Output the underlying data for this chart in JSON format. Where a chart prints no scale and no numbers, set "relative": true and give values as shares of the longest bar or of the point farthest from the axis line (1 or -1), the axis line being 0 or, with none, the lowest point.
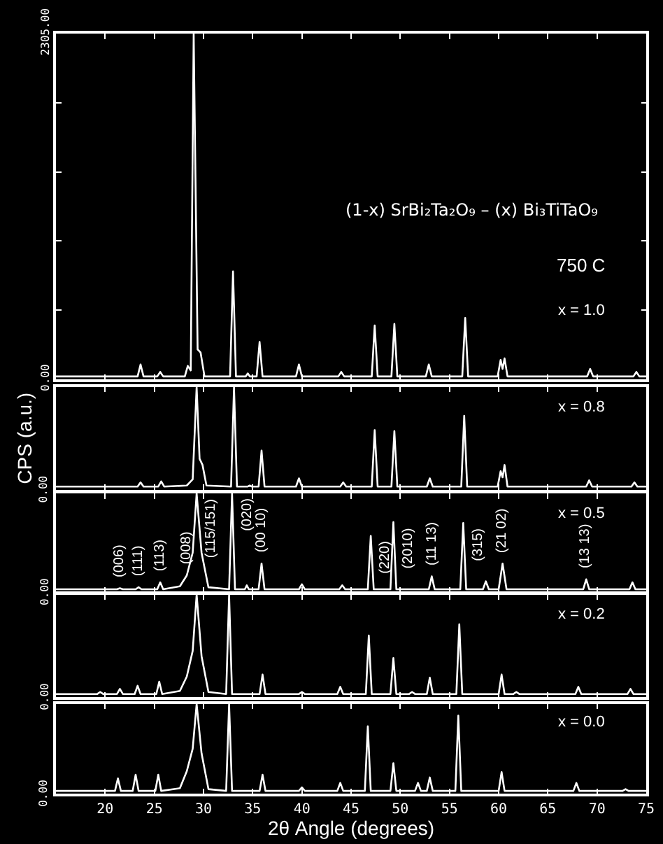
{
  "chart_data": [
    {
      "type": "line",
      "title": "(1-x) SrBi₂Ta₂O₉ – (x) Bi₃TiTaO₉",
      "annotations": [
        "750 C",
        "x = 1.0"
      ],
      "tick_labels": "y",
      "xlim": [
        15,
        75
      ],
      "xticks": [
        20,
        25,
        30,
        35,
        40,
        45,
        50,
        55,
        60,
        65,
        70,
        75
      ],
      "ylim": [
        0,
        2305
      ],
      "yticks": [
        {
          "value": 0,
          "label": "0.00"
        },
        {
          "value": 461,
          "label": null
        },
        {
          "value": 922,
          "label": null
        },
        {
          "value": 1383,
          "label": null
        },
        {
          "value": 1844,
          "label": null
        },
        {
          "value": 2305,
          "label": "2305.00"
        }
      ],
      "series": [
        {
          "color": "#ffffff",
          "x": [
            15,
            23.3,
            23.6,
            23.9,
            25.3,
            25.6,
            25.9,
            28.1,
            28.4,
            28.7,
            29.0,
            29.4,
            29.7,
            30.1,
            32.7,
            33.0,
            33.3,
            34.3,
            34.5,
            34.7,
            35.4,
            35.7,
            36.0,
            39.4,
            39.7,
            40.0,
            43.7,
            44.0,
            44.3,
            47.1,
            47.4,
            47.7,
            49.1,
            49.4,
            49.7,
            52.6,
            52.9,
            53.2,
            56.3,
            56.6,
            56.9,
            59.9,
            60.2,
            60.4,
            60.6,
            60.9,
            69.0,
            69.3,
            69.6,
            73.7,
            74.0,
            74.3,
            75
          ],
          "values": [
            20,
            20,
            100,
            20,
            20,
            50,
            20,
            20,
            90,
            60,
            2305,
            200,
            180,
            20,
            20,
            720,
            20,
            20,
            40,
            20,
            20,
            250,
            20,
            20,
            100,
            20,
            20,
            50,
            20,
            20,
            360,
            20,
            20,
            370,
            20,
            20,
            100,
            20,
            20,
            410,
            20,
            20,
            130,
            70,
            140,
            20,
            20,
            70,
            20,
            20,
            50,
            20,
            20
          ]
        }
      ]
    },
    {
      "type": "line",
      "relative": true,
      "ylabel": "CPS (a.u.)",
      "annotations": [
        "x = 0.8",
        "0.00"
      ],
      "tick_labels": false,
      "xlim": [
        15,
        75
      ],
      "xticks": [
        20,
        25,
        30,
        35,
        40,
        45,
        50,
        55,
        60,
        65,
        70,
        75
      ],
      "series": [
        {
          "color": "#ffffff",
          "x": [
            15,
            23.3,
            23.6,
            23.9,
            25.4,
            25.7,
            26.0,
            28.3,
            28.6,
            28.9,
            29.3,
            29.6,
            29.9,
            30.3,
            32.8,
            33.1,
            33.4,
            34.5,
            34.7,
            34.9,
            35.6,
            35.9,
            36.2,
            39.4,
            39.7,
            40.0,
            43.9,
            44.2,
            44.5,
            47.1,
            47.4,
            47.7,
            49.1,
            49.4,
            49.7,
            52.7,
            53.0,
            53.3,
            56.2,
            56.5,
            56.8,
            59.9,
            60.2,
            60.4,
            60.6,
            60.9,
            68.9,
            69.2,
            69.5,
            73.5,
            73.8,
            74.1,
            75
          ],
          "values": [
            0.03,
            0.03,
            0.07,
            0.03,
            0.03,
            0.08,
            0.03,
            0.04,
            0.07,
            0.1,
            1.0,
            0.3,
            0.24,
            0.04,
            0.03,
            1.0,
            0.03,
            0.03,
            0.04,
            0.03,
            0.03,
            0.38,
            0.03,
            0.03,
            0.11,
            0.03,
            0.03,
            0.07,
            0.03,
            0.03,
            0.58,
            0.03,
            0.03,
            0.57,
            0.03,
            0.03,
            0.11,
            0.03,
            0.03,
            0.72,
            0.03,
            0.03,
            0.18,
            0.12,
            0.24,
            0.03,
            0.03,
            0.09,
            0.03,
            0.03,
            0.07,
            0.03,
            0.03
          ]
        }
      ]
    },
    {
      "type": "line",
      "relative": true,
      "tick_labels": false,
      "annotations": [
        "x = 0.5",
        "0.00",
        {
          "text": "(006)",
          "x": 21.5,
          "y": 0.04
        },
        {
          "text": "(111)",
          "x": 23.4,
          "y": 0.05
        },
        {
          "text": "(113)",
          "x": 25.6,
          "y": 0.1
        },
        {
          "text": "(008)",
          "x": 28.3,
          "y": 0.17
        },
        {
          "text": "(115/151)",
          "x": 29.3,
          "y": 1.0
        },
        {
          "text": "(020)",
          "x": 32.9,
          "y": 1.0
        },
        {
          "text": "(00 10)",
          "x": 35.9,
          "y": 0.29
        },
        {
          "text": "(220)",
          "x": 47.0,
          "y": 0.57
        },
        {
          "text": "(2010)",
          "x": 49.3,
          "y": 0.71
        },
        {
          "text": "(11 13)",
          "x": 53.2,
          "y": 0.16
        },
        {
          "text": "(315)",
          "x": 56.4,
          "y": 0.7
        },
        {
          "text": "(21 02)",
          "x": 60.4,
          "y": 0.29
        },
        {
          "text": "(13 13)",
          "x": 68.9,
          "y": 0.13
        }
      ],
      "xlim": [
        15,
        75
      ],
      "xticks": [
        20,
        25,
        30,
        35,
        40,
        45,
        50,
        55,
        60,
        65,
        70,
        75
      ],
      "series": [
        {
          "color": "#ffffff",
          "x": [
            15,
            21.2,
            21.5,
            21.8,
            23.1,
            23.4,
            23.7,
            25.3,
            25.6,
            25.9,
            27.6,
            28.3,
            28.9,
            29.3,
            29.8,
            30.5,
            32.6,
            32.9,
            33.2,
            34.2,
            34.4,
            34.6,
            35.6,
            35.9,
            36.2,
            39.7,
            40.0,
            40.3,
            43.8,
            44.1,
            44.4,
            46.7,
            47.0,
            47.3,
            49.0,
            49.3,
            49.6,
            52.9,
            53.2,
            53.5,
            56.1,
            56.4,
            56.7,
            58.4,
            58.7,
            59.0,
            60.0,
            60.4,
            60.8,
            68.6,
            68.9,
            69.2,
            73.3,
            73.6,
            73.9,
            75
          ],
          "values": [
            0.03,
            0.03,
            0.04,
            0.03,
            0.03,
            0.05,
            0.03,
            0.03,
            0.1,
            0.03,
            0.06,
            0.17,
            0.4,
            1.0,
            0.4,
            0.05,
            0.03,
            1.0,
            0.03,
            0.03,
            0.07,
            0.03,
            0.03,
            0.29,
            0.03,
            0.03,
            0.08,
            0.03,
            0.03,
            0.07,
            0.03,
            0.03,
            0.57,
            0.03,
            0.03,
            0.71,
            0.03,
            0.03,
            0.16,
            0.03,
            0.03,
            0.7,
            0.03,
            0.03,
            0.11,
            0.03,
            0.03,
            0.29,
            0.03,
            0.03,
            0.13,
            0.03,
            0.03,
            0.1,
            0.03,
            0.03
          ]
        }
      ]
    },
    {
      "type": "line",
      "relative": true,
      "annotations": [
        "x = 0.2",
        "0.00"
      ],
      "tick_labels": false,
      "xlim": [
        15,
        75
      ],
      "xticks": [
        20,
        25,
        30,
        35,
        40,
        45,
        50,
        55,
        60,
        65,
        70,
        75
      ],
      "series": [
        {
          "color": "#ffffff",
          "x": [
            15,
            19.2,
            19.5,
            19.8,
            21.2,
            21.5,
            21.8,
            23.0,
            23.3,
            23.6,
            25.2,
            25.5,
            25.8,
            27.6,
            28.3,
            28.9,
            29.3,
            29.8,
            30.5,
            32.3,
            32.6,
            32.9,
            35.7,
            36.0,
            36.3,
            39.7,
            40.0,
            40.3,
            43.6,
            43.9,
            44.2,
            46.5,
            46.8,
            47.1,
            49.0,
            49.3,
            49.6,
            50.9,
            51.2,
            51.5,
            52.7,
            53.0,
            53.3,
            55.7,
            56.0,
            56.3,
            60.0,
            60.3,
            60.6,
            61.5,
            61.8,
            62.1,
            67.8,
            68.1,
            68.4,
            73.1,
            73.4,
            73.7,
            75
          ],
          "values": [
            0.03,
            0.03,
            0.05,
            0.03,
            0.03,
            0.08,
            0.03,
            0.03,
            0.11,
            0.03,
            0.03,
            0.15,
            0.03,
            0.06,
            0.2,
            0.45,
            1.0,
            0.4,
            0.05,
            0.03,
            1.0,
            0.03,
            0.03,
            0.22,
            0.03,
            0.03,
            0.05,
            0.03,
            0.03,
            0.1,
            0.03,
            0.03,
            0.6,
            0.03,
            0.03,
            0.38,
            0.03,
            0.03,
            0.05,
            0.03,
            0.03,
            0.19,
            0.03,
            0.03,
            0.71,
            0.03,
            0.03,
            0.22,
            0.03,
            0.03,
            0.05,
            0.03,
            0.03,
            0.1,
            0.03,
            0.03,
            0.08,
            0.03,
            0.03
          ]
        }
      ]
    },
    {
      "type": "line",
      "relative": true,
      "xlabel": "2θ Angle (degrees)",
      "annotations": [
        "x = 0.0",
        "0.00"
      ],
      "tick_labels": "x",
      "xlim": [
        15,
        75
      ],
      "xticks": [
        20,
        25,
        30,
        35,
        40,
        45,
        50,
        55,
        60,
        65,
        70,
        75
      ],
      "series": [
        {
          "color": "#ffffff",
          "x": [
            15,
            21.0,
            21.3,
            21.6,
            22.8,
            23.1,
            23.4,
            25.1,
            25.4,
            25.7,
            27.6,
            28.3,
            28.9,
            29.3,
            29.8,
            30.5,
            32.3,
            32.6,
            32.9,
            35.7,
            36.0,
            36.3,
            39.7,
            40.0,
            40.3,
            43.6,
            43.9,
            44.2,
            46.4,
            46.7,
            47.0,
            49.0,
            49.3,
            49.6,
            51.5,
            51.8,
            52.1,
            52.7,
            53.0,
            53.3,
            55.6,
            55.9,
            56.2,
            60.0,
            60.3,
            60.6,
            67.6,
            67.9,
            68.2,
            72.6,
            72.9,
            73.2,
            75
          ],
          "values": [
            0.03,
            0.03,
            0.17,
            0.03,
            0.03,
            0.21,
            0.03,
            0.03,
            0.21,
            0.03,
            0.06,
            0.25,
            0.5,
            1.0,
            0.45,
            0.05,
            0.03,
            1.0,
            0.03,
            0.03,
            0.21,
            0.03,
            0.03,
            0.07,
            0.03,
            0.03,
            0.12,
            0.03,
            0.03,
            0.75,
            0.03,
            0.03,
            0.34,
            0.03,
            0.03,
            0.12,
            0.03,
            0.03,
            0.18,
            0.03,
            0.03,
            0.87,
            0.03,
            0.03,
            0.24,
            0.03,
            0.03,
            0.12,
            0.03,
            0.03,
            0.05,
            0.03,
            0.03
          ]
        }
      ]
    }
  ]
}
